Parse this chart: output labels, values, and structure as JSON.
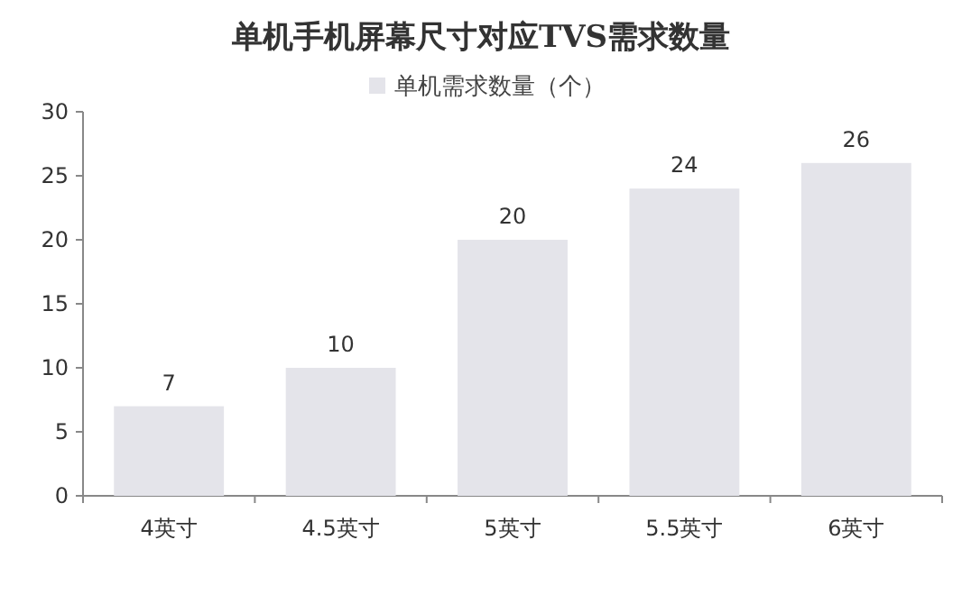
{
  "chart_data": {
    "type": "bar",
    "title": "单机手机屏幕尺寸对应TVS需求数量",
    "categories": [
      "4英寸",
      "4.5英寸",
      "5英寸",
      "5.5英寸",
      "6英寸"
    ],
    "series": [
      {
        "name": "单机需求数量（个）",
        "color": "#e4e4ea",
        "values": [
          7,
          10,
          20,
          24,
          26
        ]
      }
    ],
    "ylim": [
      0,
      30
    ],
    "yticks": [
      0,
      5,
      10,
      15,
      20,
      25,
      30
    ],
    "data_labels": true,
    "legend": "top",
    "grid": false
  }
}
